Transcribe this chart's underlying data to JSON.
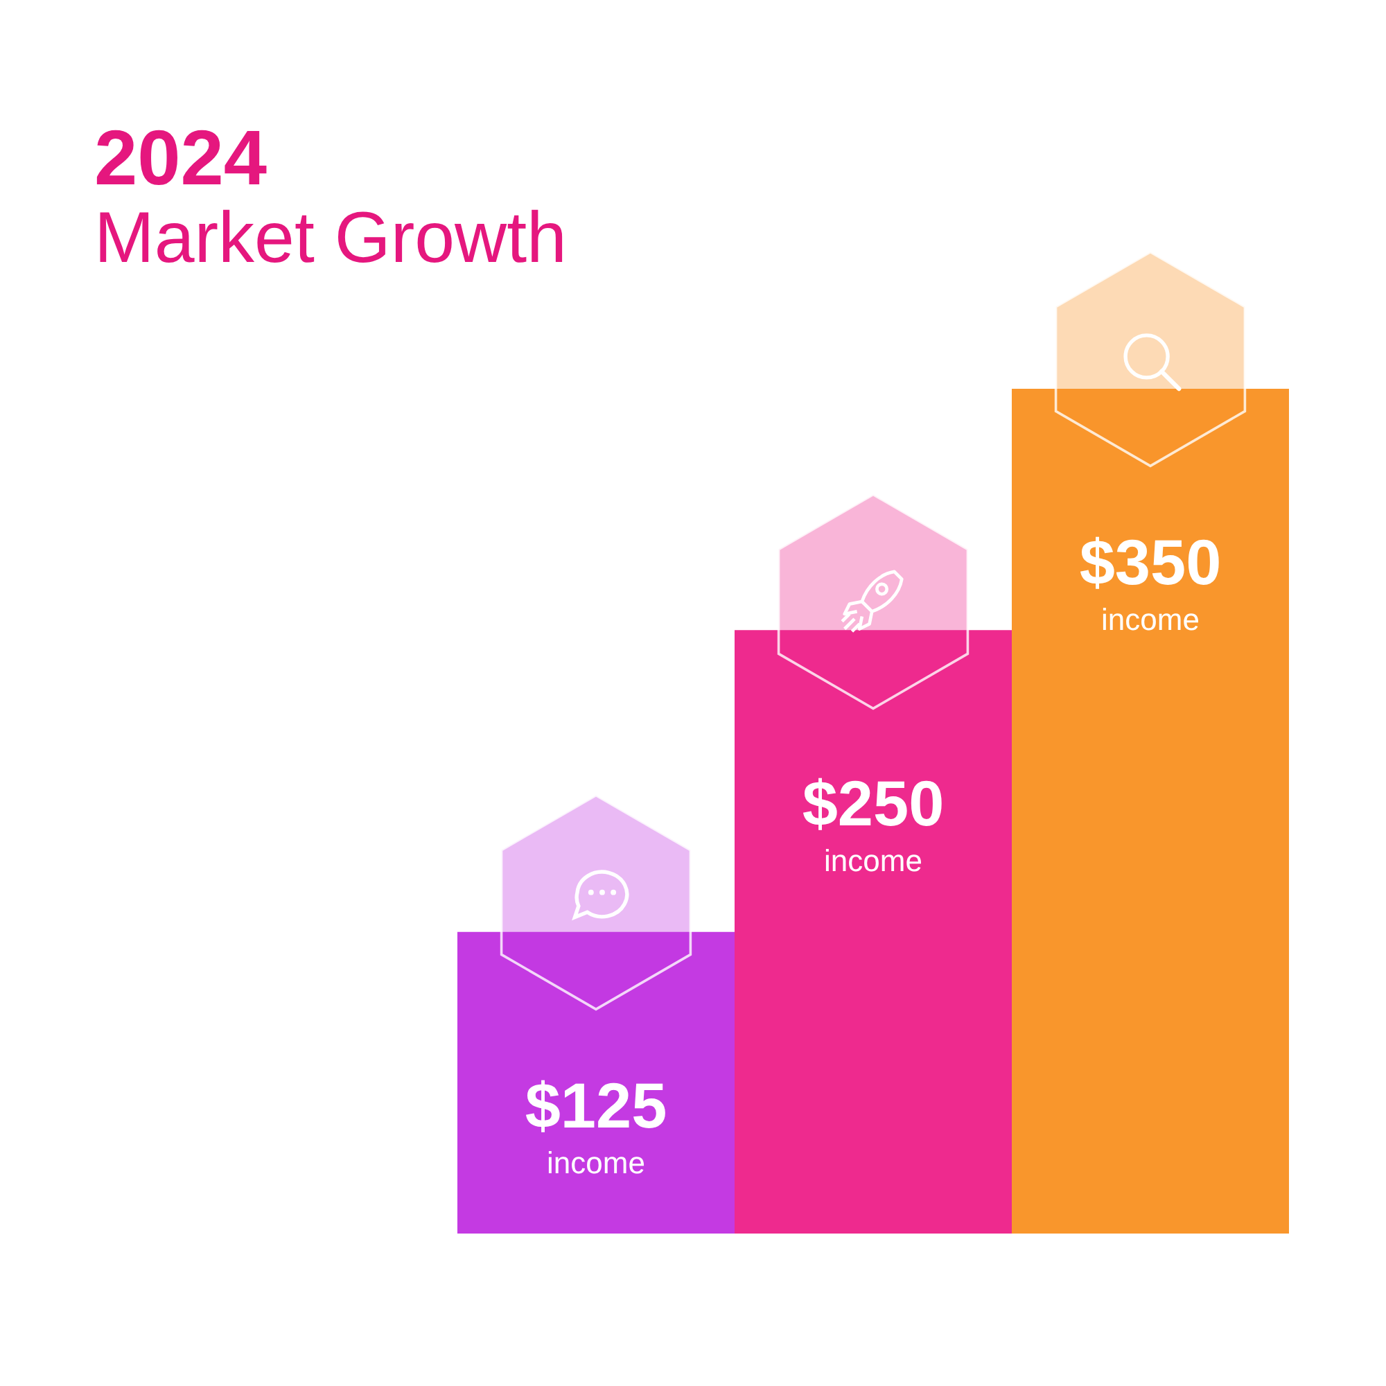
{
  "chart_data": {
    "type": "bar",
    "title": "2024",
    "subtitle": "Market Growth",
    "categories": [
      null,
      null,
      null
    ],
    "values": [
      125,
      250,
      350
    ],
    "colors": [
      "#c43ae2",
      "#ee2a8e",
      "#f9962c"
    ],
    "value_labels": [
      "$125",
      "$250",
      "$350"
    ],
    "annotations": [
      "income",
      "income",
      "income"
    ],
    "tick_labels": false
  }
}
